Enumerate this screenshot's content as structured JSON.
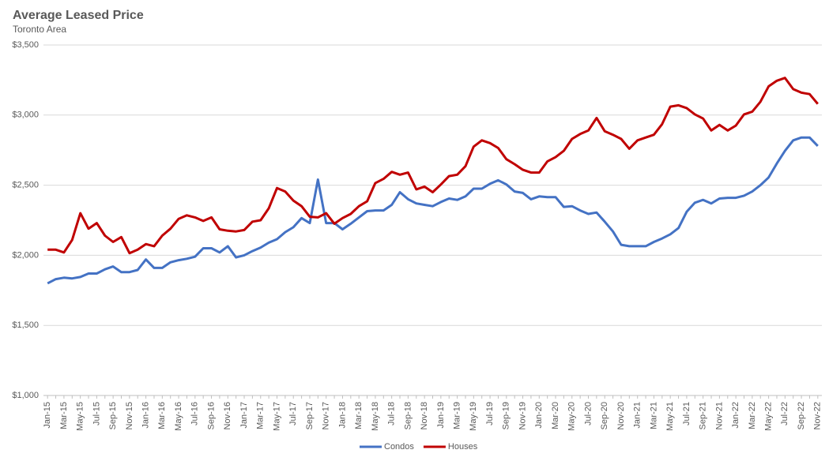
{
  "chart_data": {
    "type": "line",
    "title": "Average Leased Price",
    "subtitle": "Toronto Area",
    "categories": [
      "Jan-15",
      null,
      "Mar-15",
      null,
      "May-15",
      null,
      "Jul-15",
      null,
      "Sep-15",
      null,
      "Nov-15",
      null,
      "Jan-16",
      null,
      "Mar-16",
      null,
      "May-16",
      null,
      "Jul-16",
      null,
      "Sep-16",
      null,
      "Nov-16",
      null,
      "Jan-17",
      null,
      "Mar-17",
      null,
      "May-17",
      null,
      "Jul-17",
      null,
      "Sep-17",
      null,
      "Nov-17",
      null,
      "Jan-18",
      null,
      "Mar-18",
      null,
      "May-18",
      null,
      "Jul-18",
      null,
      "Sep-18",
      null,
      "Nov-18",
      null,
      "Jan-19",
      null,
      "Mar-19",
      null,
      "May-19",
      null,
      "Jul-19",
      null,
      "Sep-19",
      null,
      "Nov-19",
      null,
      "Jan-20",
      null,
      "Mar-20",
      null,
      "May-20",
      null,
      "Jul-20",
      null,
      "Sep-20",
      null,
      "Nov-20",
      null,
      "Jan-21",
      null,
      "Mar-21",
      null,
      "May-21",
      null,
      "Jul-21",
      null,
      "Sep-21",
      null,
      "Nov-21",
      null,
      "Jan-22",
      null,
      "Mar-22",
      null,
      "May-22",
      null,
      "Jul-22",
      null,
      "Sep-22",
      null,
      "Nov-22"
    ],
    "series": [
      {
        "name": "Condos",
        "color": "#4472c4",
        "values": [
          1800,
          1830,
          1840,
          1835,
          1845,
          1870,
          1870,
          1900,
          1920,
          1880,
          1880,
          1895,
          1970,
          1910,
          1910,
          1950,
          1965,
          1975,
          1990,
          2050,
          2050,
          2020,
          2065,
          1985,
          2000,
          2030,
          2055,
          2090,
          2115,
          2165,
          2200,
          2265,
          2230,
          2540,
          2230,
          2230,
          2185,
          2225,
          2270,
          2315,
          2320,
          2320,
          2360,
          2450,
          2400,
          2370,
          2360,
          2350,
          2380,
          2405,
          2395,
          2420,
          2475,
          2475,
          2510,
          2535,
          2505,
          2455,
          2445,
          2400,
          2420,
          2415,
          2415,
          2345,
          2350,
          2320,
          2295,
          2305,
          2240,
          2170,
          2075,
          2065,
          2065,
          2065,
          2095,
          2120,
          2150,
          2195,
          2310,
          2375,
          2395,
          2370,
          2405,
          2410,
          2410,
          2425,
          2455,
          2500,
          2555,
          2655,
          2745,
          2820,
          2840,
          2840,
          2780
        ]
      },
      {
        "name": "Houses",
        "color": "#c00000",
        "values": [
          2040,
          2040,
          2020,
          2110,
          2300,
          2190,
          2230,
          2140,
          2095,
          2130,
          2015,
          2040,
          2080,
          2065,
          2140,
          2190,
          2260,
          2285,
          2270,
          2245,
          2270,
          2185,
          2175,
          2170,
          2180,
          2240,
          2250,
          2335,
          2480,
          2455,
          2390,
          2350,
          2275,
          2270,
          2300,
          2225,
          2265,
          2295,
          2350,
          2385,
          2515,
          2545,
          2595,
          2575,
          2590,
          2470,
          2490,
          2450,
          2505,
          2565,
          2575,
          2635,
          2775,
          2820,
          2800,
          2765,
          2685,
          2650,
          2610,
          2590,
          2590,
          2670,
          2700,
          2745,
          2830,
          2865,
          2890,
          2980,
          2885,
          2860,
          2830,
          2760,
          2820,
          2840,
          2860,
          2935,
          3060,
          3070,
          3050,
          3005,
          2975,
          2890,
          2930,
          2890,
          2925,
          3005,
          3025,
          3095,
          3205,
          3245,
          3265,
          3185,
          3160,
          3150,
          3080
        ]
      }
    ],
    "ylim": [
      1000,
      3500
    ],
    "yticks": [
      {
        "value": 1000,
        "label": "$1,000"
      },
      {
        "value": 1500,
        "label": "$1,500"
      },
      {
        "value": 2000,
        "label": "$2,000"
      },
      {
        "value": 2500,
        "label": "$2,500"
      },
      {
        "value": 3000,
        "label": "$3,000"
      },
      {
        "value": 3500,
        "label": "$3,500"
      }
    ],
    "grid": true,
    "legend": "bottom"
  }
}
